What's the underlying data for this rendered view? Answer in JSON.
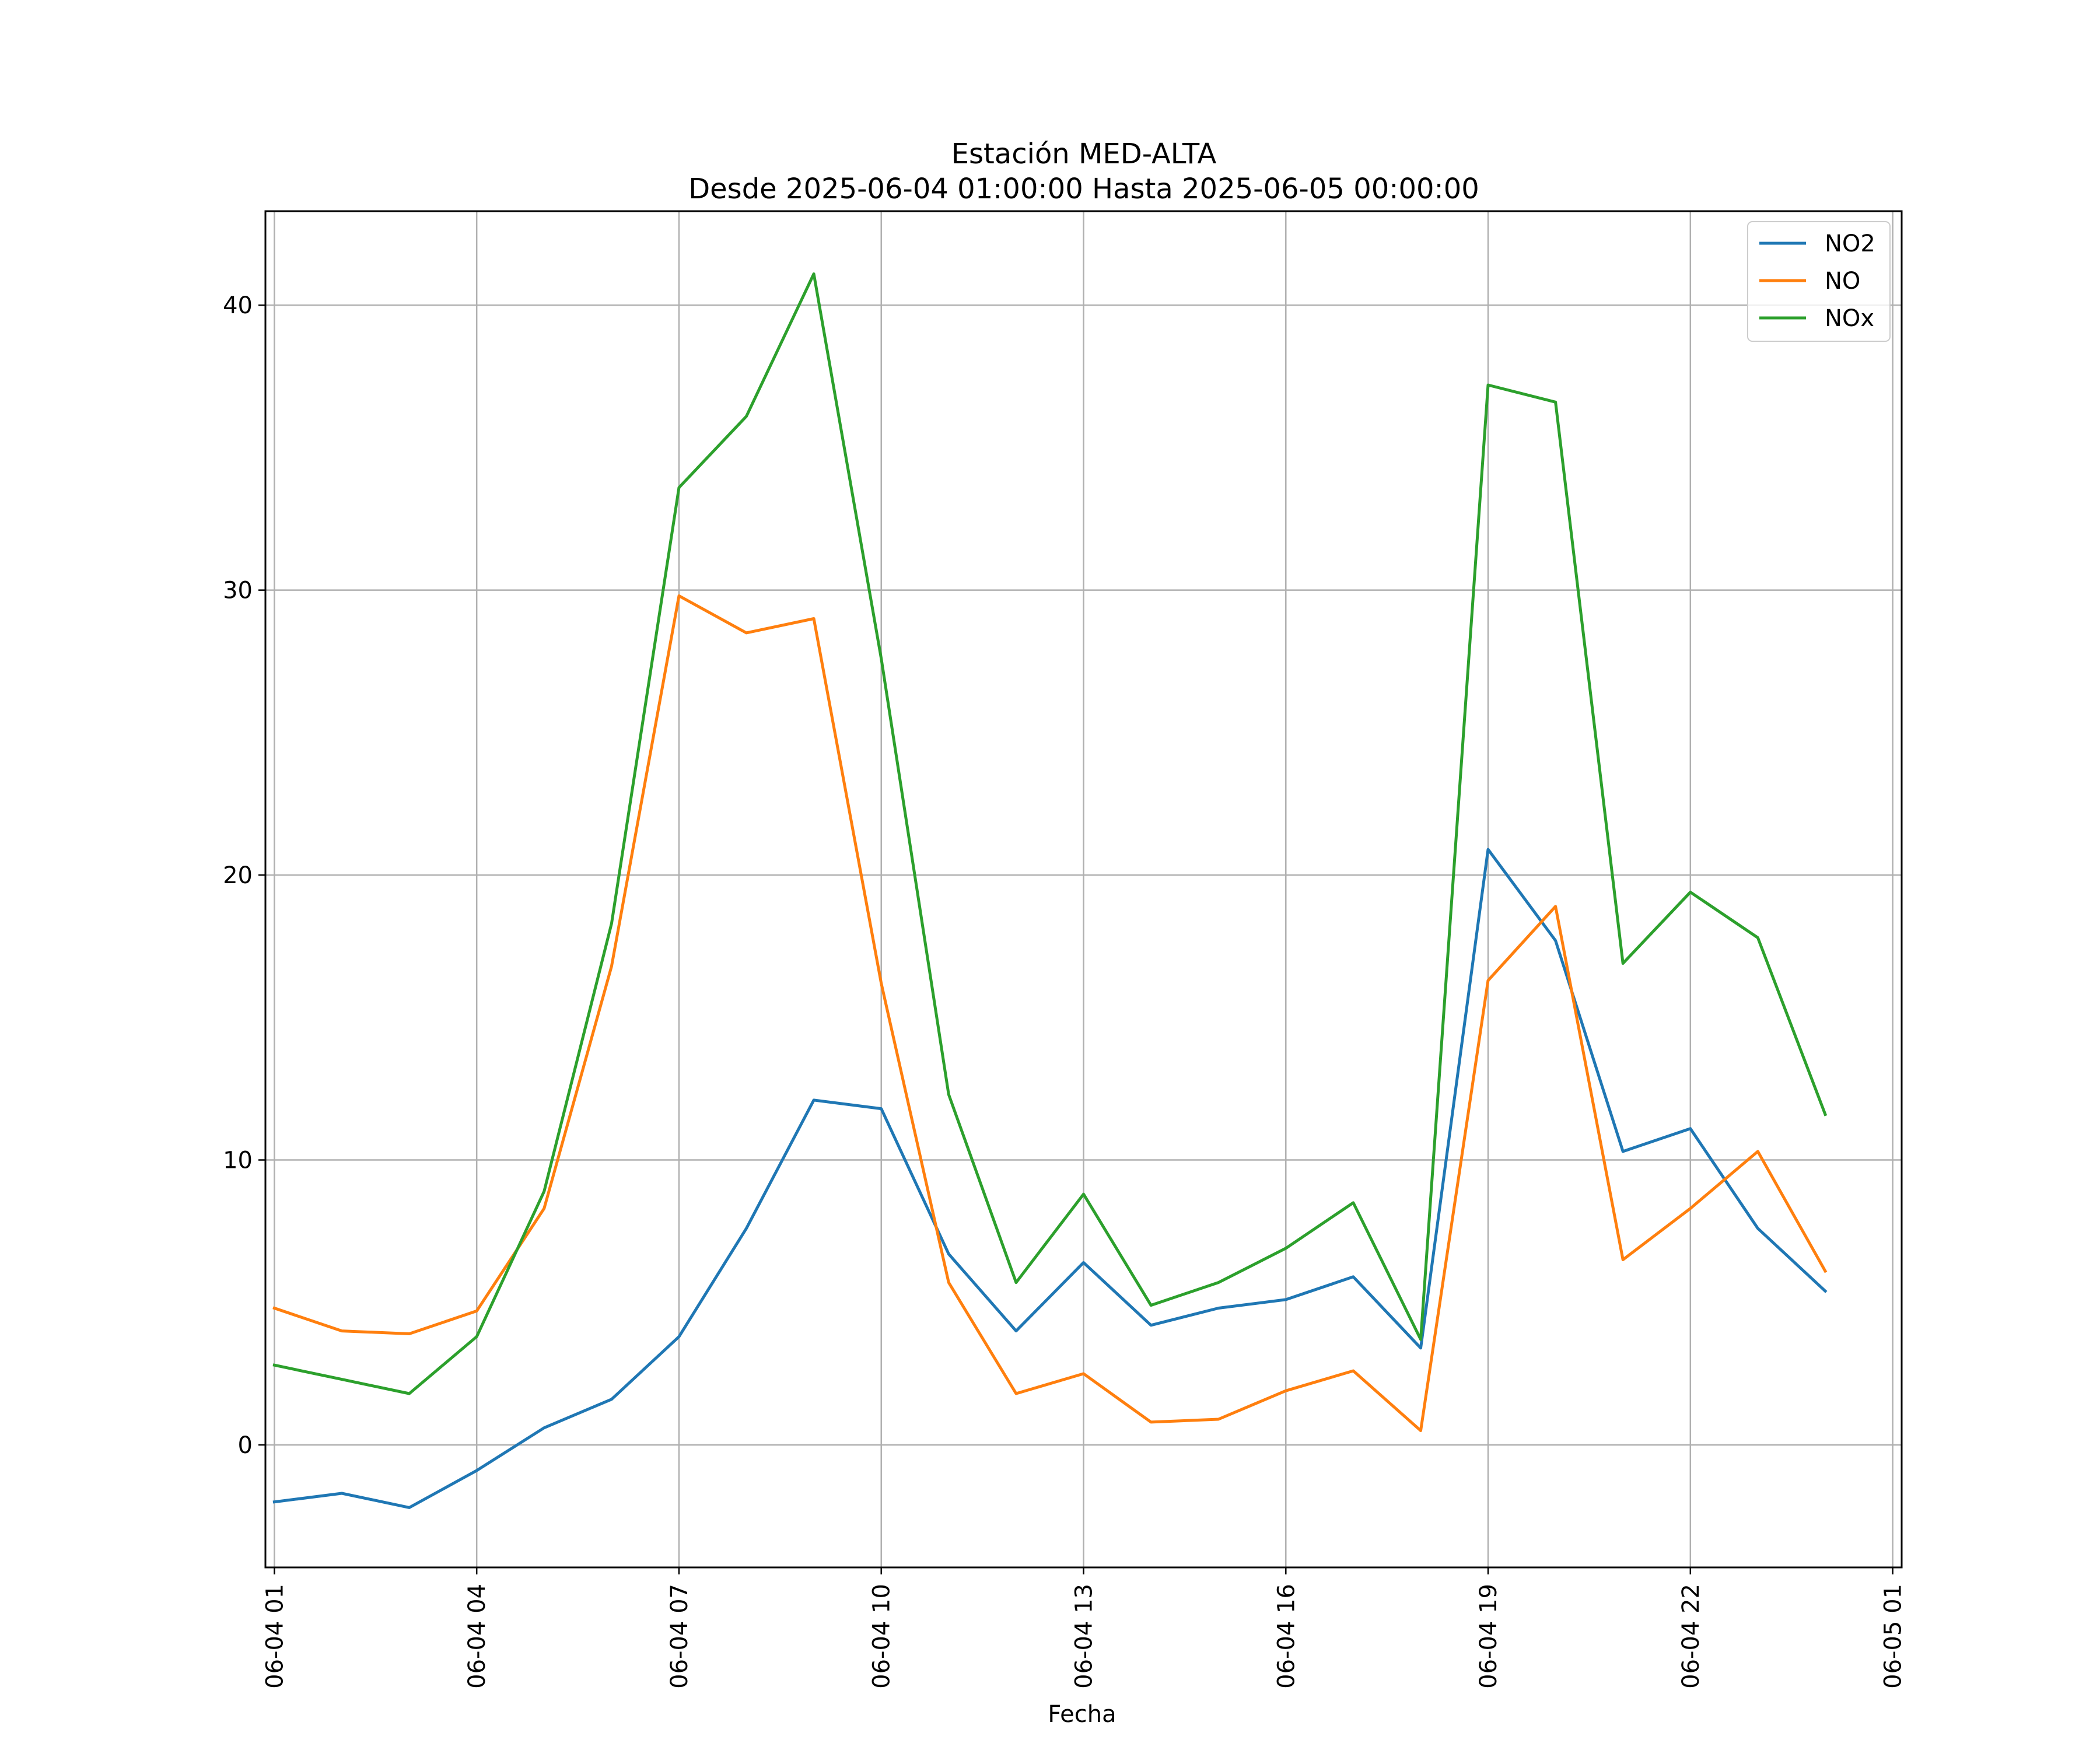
{
  "chart_data": {
    "type": "line",
    "title": "Estación MED-ALTA",
    "subtitle": "Desde 2025-06-04 01:00:00 Hasta 2025-06-05 00:00:00",
    "xlabel": "Fecha",
    "ylabel": "",
    "x": [
      "06-04 01",
      "06-04 02",
      "06-04 03",
      "06-04 04",
      "06-04 05",
      "06-04 06",
      "06-04 07",
      "06-04 08",
      "06-04 09",
      "06-04 10",
      "06-04 11",
      "06-04 12",
      "06-04 13",
      "06-04 14",
      "06-04 15",
      "06-04 16",
      "06-04 17",
      "06-04 18",
      "06-04 19",
      "06-04 20",
      "06-04 21",
      "06-04 22",
      "06-04 23",
      "06-05 00"
    ],
    "x_tick_labels": [
      "06-04 01",
      "06-04 04",
      "06-04 07",
      "06-04 10",
      "06-04 13",
      "06-04 16",
      "06-04 19",
      "06-04 22",
      "06-05 01"
    ],
    "y_ticks": [
      0,
      10,
      20,
      30,
      40
    ],
    "ylim": [
      -4.3,
      43.3
    ],
    "xlim": [
      "06-04 00:52",
      "06-05 01:08"
    ],
    "grid": true,
    "legend_position": "top-right",
    "series": [
      {
        "name": "NO2",
        "color": "#1f77b4",
        "values": [
          -2.0,
          -1.7,
          -2.2,
          -0.9,
          0.6,
          1.6,
          3.8,
          7.6,
          12.1,
          11.8,
          6.7,
          4.0,
          6.4,
          4.2,
          4.8,
          5.1,
          5.9,
          3.4,
          20.9,
          17.7,
          10.3,
          11.1,
          7.6,
          5.4
        ]
      },
      {
        "name": "NO",
        "color": "#ff7f0e",
        "values": [
          4.8,
          4.0,
          3.9,
          4.7,
          8.3,
          16.8,
          29.8,
          28.5,
          29.0,
          16.2,
          5.7,
          1.8,
          2.5,
          0.8,
          0.9,
          1.9,
          2.6,
          0.5,
          16.3,
          18.9,
          6.5,
          8.3,
          10.3,
          6.1
        ]
      },
      {
        "name": "NOx",
        "color": "#2ca02c",
        "values": [
          2.8,
          2.3,
          1.8,
          3.8,
          8.9,
          18.3,
          33.6,
          36.1,
          41.1,
          27.6,
          12.3,
          5.7,
          8.8,
          4.9,
          5.7,
          6.9,
          8.5,
          3.7,
          37.2,
          36.6,
          16.9,
          19.4,
          17.8,
          11.6
        ]
      }
    ]
  }
}
